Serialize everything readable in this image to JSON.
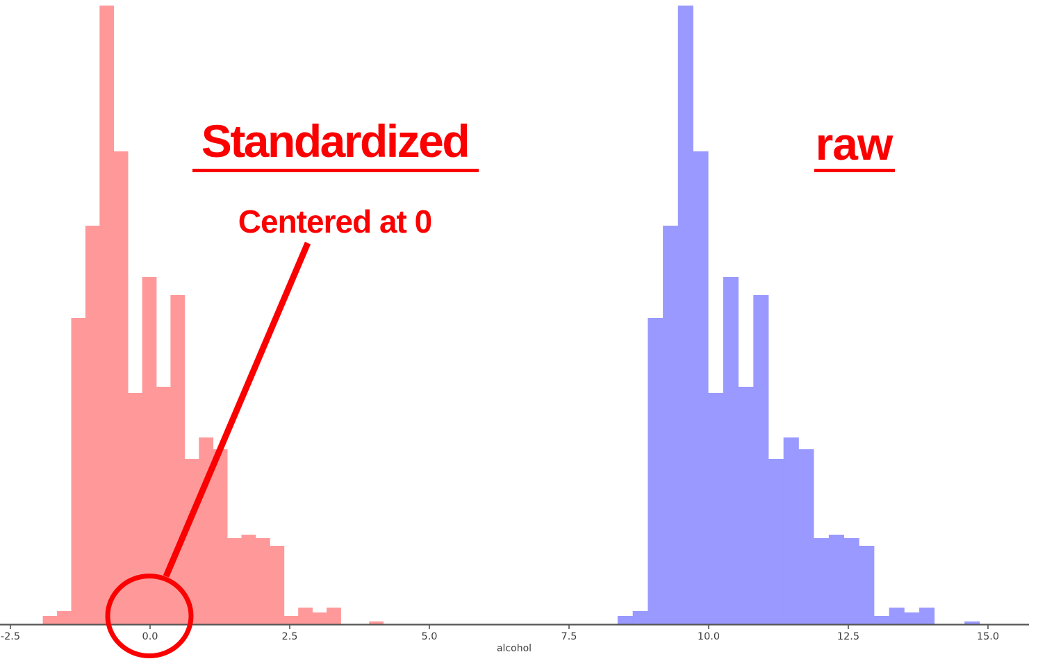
{
  "page": {
    "background": "#ffffff"
  },
  "colors": {
    "annotation_red": "#fb0000",
    "standardized_fill": "#ff9999",
    "raw_fill": "#9999ff",
    "axis_line": "#555555",
    "tick_text": "#3d3d3d"
  },
  "annotations": {
    "standardized": {
      "label": "Standardized",
      "underlined": true
    },
    "centered": {
      "label": "Centered at 0"
    },
    "raw": {
      "label": "raw",
      "underlined": true
    },
    "callout": "red circle around 0.0 on the x-axis, connected by a straight red pointer line to the 'Centered at 0' text"
  },
  "axis": {
    "label": "alcohol",
    "tick_labels": [
      "-2.5",
      "0.0",
      "2.5",
      "5.0",
      "7.5",
      "10.0",
      "12.5",
      "15.0"
    ]
  },
  "chart_data": {
    "type": "bar",
    "subtype": "histogram",
    "title": "",
    "xlabel": "alcohol",
    "ylabel": "",
    "grid": false,
    "legend": false,
    "x_ticks": [
      -2.5,
      0.0,
      2.5,
      5.0,
      7.5,
      10.0,
      12.5,
      15.0
    ],
    "x_range": [
      -2.7,
      15.8
    ],
    "y_range_relative": [
      0,
      1.0
    ],
    "note": "Two histograms of the same alcohol data: left = standardized (z-scores, centered at 0), right = raw values. Identical shape, 24 bins each; heights are relative frequency (fraction of modal bin).",
    "series": [
      {
        "name": "Standardized",
        "color": "#ff9999",
        "bin_start": -1.92,
        "bin_width": 0.254,
        "heights_rel": [
          0.015,
          0.022,
          0.495,
          0.645,
          1.0,
          0.765,
          0.374,
          0.562,
          0.385,
          0.532,
          0.268,
          0.303,
          0.284,
          0.14,
          0.146,
          0.14,
          0.128,
          0.015,
          0.028,
          0.02,
          0.028,
          0,
          0,
          0.006
        ]
      },
      {
        "name": "raw",
        "color": "#9999ff",
        "bin_start": 8.37,
        "bin_width": 0.27,
        "heights_rel": [
          0.015,
          0.022,
          0.495,
          0.645,
          1.0,
          0.765,
          0.374,
          0.562,
          0.385,
          0.532,
          0.268,
          0.303,
          0.284,
          0.14,
          0.146,
          0.14,
          0.128,
          0.015,
          0.028,
          0.02,
          0.028,
          0,
          0,
          0.006
        ]
      }
    ]
  }
}
